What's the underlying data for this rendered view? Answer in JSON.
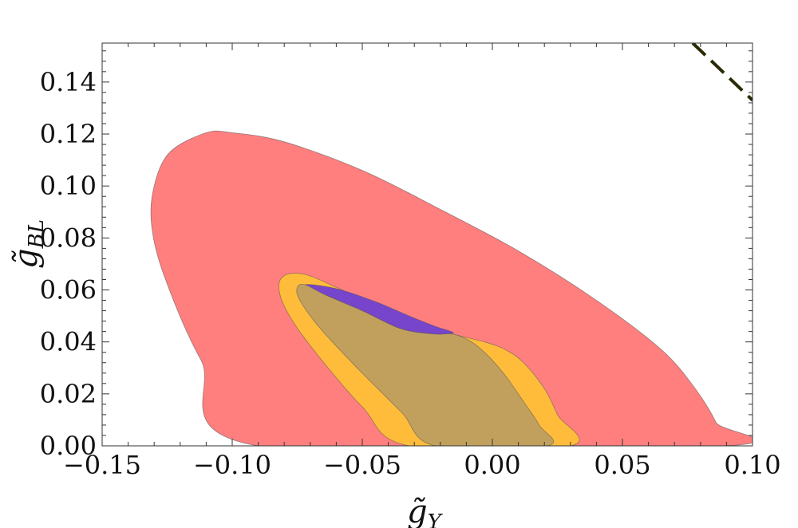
{
  "chart_data": {
    "type": "area",
    "title": "",
    "xlabel": {
      "base": "g̃",
      "sub": "Y"
    },
    "ylabel": {
      "base": "g̃",
      "sub": "BL"
    },
    "xlim": [
      -0.15,
      0.1
    ],
    "ylim": [
      0.0,
      0.155
    ],
    "grid": false,
    "legend": "none",
    "x_ticks": [
      {
        "value": -0.15,
        "label": "−0.15"
      },
      {
        "value": -0.1,
        "label": "−0.10"
      },
      {
        "value": -0.05,
        "label": "−0.05"
      },
      {
        "value": 0.0,
        "label": "0.00"
      },
      {
        "value": 0.05,
        "label": "0.05"
      },
      {
        "value": 0.1,
        "label": "0.10"
      }
    ],
    "y_ticks": [
      {
        "value": 0.0,
        "label": "0.00"
      },
      {
        "value": 0.02,
        "label": "0.02"
      },
      {
        "value": 0.04,
        "label": "0.04"
      },
      {
        "value": 0.06,
        "label": "0.06"
      },
      {
        "value": 0.08,
        "label": "0.08"
      },
      {
        "value": 0.1,
        "label": "0.10"
      },
      {
        "value": 0.12,
        "label": "0.12"
      },
      {
        "value": 0.14,
        "label": "0.14"
      }
    ],
    "regions": [
      {
        "id": "red",
        "color": "#ff7f7f",
        "points": [
          [
            -0.09,
            0.0
          ],
          [
            -0.112,
            0.033
          ],
          [
            -0.126,
            0.065
          ],
          [
            -0.131,
            0.085
          ],
          [
            -0.13,
            0.1
          ],
          [
            -0.124,
            0.113
          ],
          [
            -0.11,
            0.1205
          ],
          [
            -0.1,
            0.1205
          ],
          [
            -0.08,
            0.117
          ],
          [
            -0.05,
            0.106
          ],
          [
            -0.02,
            0.091
          ],
          [
            0.01,
            0.075
          ],
          [
            0.04,
            0.056
          ],
          [
            0.065,
            0.037
          ],
          [
            0.078,
            0.022
          ],
          [
            0.086,
            0.009
          ],
          [
            0.089,
            0.0
          ]
        ]
      },
      {
        "id": "yellow",
        "color": "#ffbc3b",
        "points": [
          [
            -0.032,
            0.0
          ],
          [
            -0.05,
            0.015
          ],
          [
            -0.068,
            0.036
          ],
          [
            -0.078,
            0.05
          ],
          [
            -0.082,
            0.06
          ],
          [
            -0.08,
            0.0655
          ],
          [
            -0.072,
            0.066
          ],
          [
            -0.06,
            0.061
          ],
          [
            -0.045,
            0.054
          ],
          [
            -0.03,
            0.048
          ],
          [
            -0.015,
            0.043
          ],
          [
            -0.003,
            0.04
          ],
          [
            0.005,
            0.037
          ],
          [
            0.012,
            0.032
          ],
          [
            0.02,
            0.022
          ],
          [
            0.025,
            0.012
          ],
          [
            0.03,
            0.0
          ]
        ]
      },
      {
        "id": "purple",
        "color": "#7744cc",
        "points": [
          [
            -0.072,
            0.062
          ],
          [
            -0.06,
            0.0605
          ],
          [
            -0.045,
            0.0555
          ],
          [
            -0.032,
            0.05
          ],
          [
            -0.022,
            0.046
          ],
          [
            -0.015,
            0.0435
          ],
          [
            -0.022,
            0.043
          ],
          [
            -0.035,
            0.045
          ],
          [
            -0.05,
            0.052
          ],
          [
            -0.064,
            0.058
          ]
        ]
      },
      {
        "id": "tan",
        "color": "#c1a05e",
        "points": [
          [
            -0.022,
            0.0
          ],
          [
            -0.035,
            0.013
          ],
          [
            -0.052,
            0.03
          ],
          [
            -0.066,
            0.045
          ],
          [
            -0.074,
            0.056
          ],
          [
            -0.075,
            0.061
          ],
          [
            -0.072,
            0.062
          ],
          [
            -0.064,
            0.058
          ],
          [
            -0.05,
            0.052
          ],
          [
            -0.035,
            0.045
          ],
          [
            -0.022,
            0.043
          ],
          [
            -0.015,
            0.043
          ],
          [
            -0.008,
            0.04
          ],
          [
            -0.002,
            0.035
          ],
          [
            0.005,
            0.027
          ],
          [
            0.012,
            0.017
          ],
          [
            0.018,
            0.008
          ],
          [
            0.021,
            0.0
          ]
        ]
      }
    ],
    "lines": [
      {
        "id": "dashed-bound",
        "color": "#2a2a05",
        "style": "dashed",
        "points": [
          [
            0.077,
            0.155
          ],
          [
            0.1,
            0.133
          ]
        ]
      }
    ]
  }
}
